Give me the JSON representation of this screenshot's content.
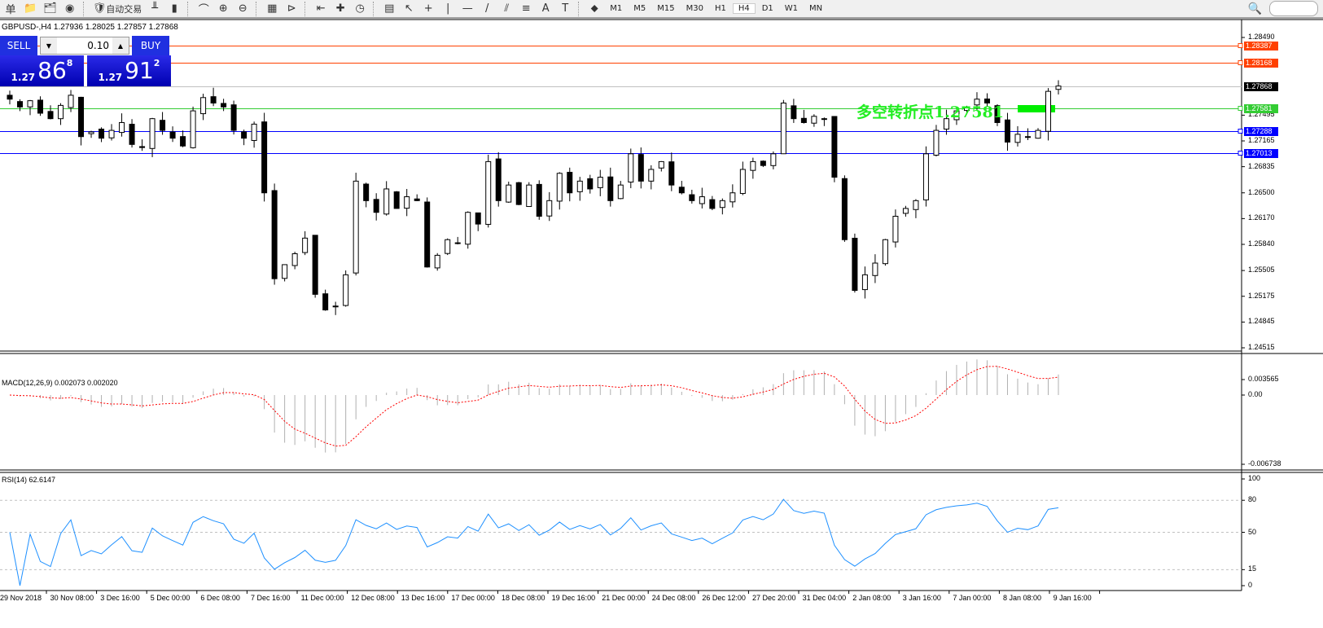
{
  "toolbar": {
    "items": [
      {
        "icon": "menu-char-icon",
        "label": "单"
      },
      {
        "icon": "folder-icon"
      },
      {
        "icon": "profile-icon"
      },
      {
        "icon": "signal-icon"
      },
      {
        "icon": "autotrade-icon",
        "label": "自动交易"
      },
      {
        "icon": "bar-chart-icon"
      },
      {
        "icon": "candlestick-icon"
      },
      {
        "icon": "line-chart-icon"
      },
      {
        "icon": "zoom-in-icon"
      },
      {
        "icon": "zoom-out-icon"
      },
      {
        "icon": "tile-windows-icon"
      },
      {
        "icon": "chart-shift-icon"
      },
      {
        "icon": "autoscroll-icon"
      },
      {
        "icon": "indicators-icon"
      },
      {
        "icon": "periods-clock-icon"
      },
      {
        "icon": "templates-icon"
      },
      {
        "icon": "cursor-icon"
      },
      {
        "icon": "crosshair-icon"
      },
      {
        "icon": "vertical-line-icon"
      },
      {
        "icon": "horizontal-line-icon"
      },
      {
        "icon": "trendline-icon"
      },
      {
        "icon": "equidistant-channel-icon"
      },
      {
        "icon": "fibonacci-icon"
      },
      {
        "icon": "text-icon",
        "label": "A"
      },
      {
        "icon": "text-label-icon",
        "label": "T"
      },
      {
        "icon": "arrows-icon"
      }
    ],
    "timeframes": [
      "M1",
      "M5",
      "M15",
      "M30",
      "H1",
      "H4",
      "D1",
      "W1",
      "MN"
    ],
    "active_timeframe": "H4"
  },
  "chart": {
    "title": "GBPUSD-,H4  1.27936 1.28025 1.27857 1.27868",
    "trade_panel": {
      "sell": "SELL",
      "buy": "BUY",
      "lot": "0.10",
      "bid": {
        "prefix": "1.27",
        "big": "86",
        "small": "8"
      },
      "ask": {
        "prefix": "1.27",
        "big": "91",
        "small": "2"
      }
    },
    "annotation": "多空转折点1.27581",
    "price_axis": [
      "1.28490",
      "1.27495",
      "1.27165",
      "1.26835",
      "1.26500",
      "1.26170",
      "1.25840",
      "1.25505",
      "1.25175",
      "1.24845",
      "1.24515"
    ],
    "hlines": [
      {
        "price": "1.28387",
        "color": "#ff4000"
      },
      {
        "price": "1.28168",
        "color": "#ff4000"
      },
      {
        "price": "1.27868",
        "color": "#000000",
        "line": "#c0c0c0"
      },
      {
        "price": "1.27581",
        "color": "#33cc33"
      },
      {
        "price": "1.27288",
        "color": "#0000ff"
      },
      {
        "price": "1.27013",
        "color": "#0000ff"
      }
    ],
    "closes": [
      1.277,
      1.276,
      1.2768,
      1.2752,
      1.2745,
      1.2762,
      1.2775,
      1.2722,
      1.2728,
      1.272,
      1.273,
      1.274,
      1.2712,
      1.2708,
      1.2745,
      1.273,
      1.272,
      1.271,
      1.2755,
      1.2772,
      1.2765,
      1.276,
      1.273,
      1.272,
      1.2738,
      1.265,
      1.254,
      1.2558,
      1.2572,
      1.2592,
      1.252,
      1.25,
      1.2505,
      1.2545,
      1.2665,
      1.264,
      1.2625,
      1.2655,
      1.263,
      1.2645,
      1.264,
      1.2555,
      1.257,
      1.259,
      1.2585,
      1.2625,
      1.261,
      1.269,
      1.264,
      1.266,
      1.2635,
      1.266,
      1.262,
      1.264,
      1.2675,
      1.265,
      1.2665,
      1.2655,
      1.267,
      1.264,
      1.266,
      1.27,
      1.2665,
      1.268,
      1.269,
      1.266,
      1.265,
      1.264,
      1.2645,
      1.263,
      1.264,
      1.265,
      1.268,
      1.269,
      1.2685,
      1.27,
      1.2765,
      1.2745,
      1.274,
      1.2748,
      1.2745,
      1.267,
      1.259,
      1.2525,
      1.2545,
      1.256,
      1.259,
      1.262,
      1.263,
      1.264,
      1.27,
      1.273,
      1.2745,
      1.2755,
      1.276,
      1.277,
      1.2765,
      1.274,
      1.2715,
      1.2725,
      1.2722,
      1.273,
      1.278,
      1.27868
    ],
    "time_axis": [
      "29 Nov 2018",
      "30 Nov 08:00",
      "3 Dec 16:00",
      "5 Dec 00:00",
      "6 Dec 08:00",
      "7 Dec 16:00",
      "11 Dec 00:00",
      "12 Dec 08:00",
      "13 Dec 16:00",
      "17 Dec 00:00",
      "18 Dec 08:00",
      "19 Dec 16:00",
      "21 Dec 00:00",
      "24 Dec 08:00",
      "26 Dec 12:00",
      "27 Dec 20:00",
      "31 Dec 04:00",
      "2 Jan 08:00",
      "3 Jan 16:00",
      "7 Jan 00:00",
      "8 Jan 08:00",
      "9 Jan 16:00"
    ]
  },
  "macd": {
    "label": "MACD(12,26,9) 0.002073 0.002020",
    "axis": [
      "0.003565",
      "0.00",
      "-0.006738"
    ]
  },
  "rsi": {
    "label": "RSI(14) 62.6147",
    "axis": [
      "100",
      "80",
      "50",
      "15",
      "0"
    ]
  }
}
